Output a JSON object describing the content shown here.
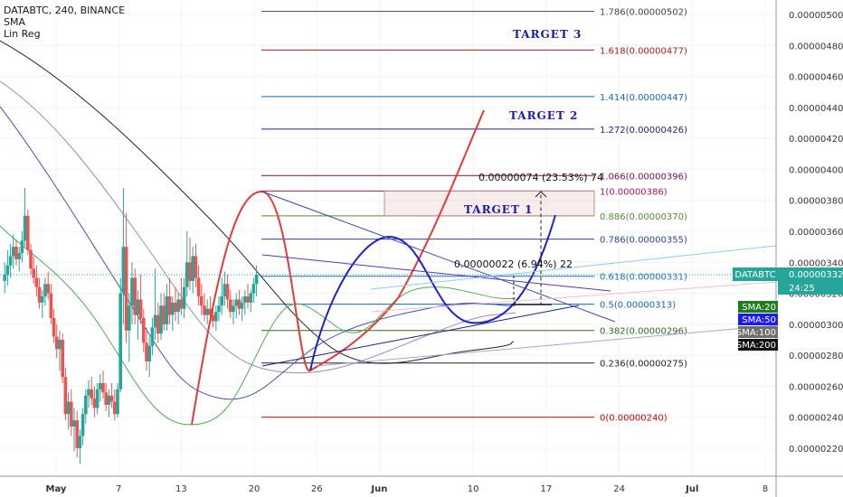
{
  "header": {
    "symbol_line": "DATABTC, 240, BINANCE",
    "indicators": [
      "SMA",
      "Lin Reg"
    ]
  },
  "chart_data": {
    "type": "candlestick",
    "ylim": [
      2.1e-06,
      5.15e-06
    ],
    "y_ticks": [
      "0.00000220",
      "0.00000240",
      "0.00000260",
      "0.00000280",
      "0.00000300",
      "0.00000320",
      "0.00000340",
      "0.00000360",
      "0.00000380",
      "0.00000400",
      "0.00000420",
      "0.00000440",
      "0.00000460",
      "0.00000480",
      "0.00000500"
    ],
    "x_ticks": [
      {
        "label": "May",
        "day": 1
      },
      {
        "label": "7",
        "day": 7
      },
      {
        "label": "13",
        "day": 13
      },
      {
        "label": "20",
        "day": 20
      },
      {
        "label": "26",
        "day": 26
      },
      {
        "label": "Jun",
        "day": 32
      },
      {
        "label": "10",
        "day": 41
      },
      {
        "label": "17",
        "day": 48
      },
      {
        "label": "24",
        "day": 55
      },
      {
        "label": "Jul",
        "day": 62
      },
      {
        "label": "8",
        "day": 69
      }
    ],
    "fib_levels": [
      {
        "label": "1.786(0.00000502)",
        "value": 5.02e-06,
        "color": "#444444"
      },
      {
        "label": "1.618(0.00000477)",
        "value": 4.77e-06,
        "color": "#b71c1c"
      },
      {
        "label": "1.414(0.00000447)",
        "value": 4.47e-06,
        "color": "#1565c0"
      },
      {
        "label": "1.272(0.00000426)",
        "value": 4.26e-06,
        "color": "#1a237e"
      },
      {
        "label": "1.066(0.00000396)",
        "value": 3.96e-06,
        "color": "#880e4f"
      },
      {
        "label": "1(0.00000386)",
        "value": 3.86e-06,
        "color": "#ad1457"
      },
      {
        "label": "0.886(0.00000370)",
        "value": 3.7e-06,
        "color": "#558b2f"
      },
      {
        "label": "0.786(0.00000355)",
        "value": 3.55e-06,
        "color": "#303f9f"
      },
      {
        "label": "0.618(0.00000331)",
        "value": 3.31e-06,
        "color": "#1976d2"
      },
      {
        "label": "0.5(0.00000313)",
        "value": 3.13e-06,
        "color": "#1565c0"
      },
      {
        "label": "0.382(0.00000296)",
        "value": 2.96e-06,
        "color": "#33691e"
      },
      {
        "label": "0.236(0.00000275)",
        "value": 2.75e-06,
        "color": "#222222"
      },
      {
        "label": "0(0.00000240)",
        "value": 2.4e-06,
        "color": "#d50000"
      }
    ],
    "annotations": {
      "target1": "TARGET  1",
      "target2": "TARGET  2",
      "target3": "TARGET  3",
      "measure_big": "0.00000074 (23.53%) 74",
      "measure_small": "0.00000022 (6.94%) 22"
    },
    "price_tags": [
      {
        "label": "DATABTC",
        "value": "0.00000332",
        "bg": "#26a69a"
      },
      {
        "label": "",
        "value": "24:25",
        "bg": "#26a69a"
      }
    ],
    "sma_tags": [
      {
        "label": "SMA:20",
        "bg": "#1b7d1b"
      },
      {
        "label": "SMA:50",
        "bg": "#1a1aff"
      },
      {
        "label": "SMA:100",
        "bg": "#6e6e6e"
      },
      {
        "label": "SMA:200",
        "bg": "#111111"
      }
    ],
    "candles": [
      [
        0.5,
        328,
        340,
        320,
        332
      ],
      [
        1.0,
        332,
        348,
        325,
        338
      ],
      [
        1.5,
        338,
        352,
        330,
        344
      ],
      [
        2.0,
        344,
        358,
        336,
        350
      ],
      [
        2.5,
        350,
        355,
        338,
        342
      ],
      [
        3.0,
        342,
        350,
        334,
        346
      ],
      [
        3.5,
        346,
        360,
        340,
        354
      ],
      [
        4.0,
        354,
        388,
        350,
        370
      ],
      [
        4.5,
        370,
        374,
        345,
        348
      ],
      [
        5.0,
        348,
        352,
        332,
        336
      ],
      [
        5.5,
        336,
        344,
        326,
        330
      ],
      [
        6.0,
        330,
        338,
        318,
        324
      ],
      [
        6.5,
        324,
        330,
        310,
        314
      ],
      [
        7.0,
        314,
        322,
        304,
        318
      ],
      [
        7.5,
        318,
        330,
        312,
        326
      ],
      [
        8.0,
        326,
        334,
        316,
        320
      ],
      [
        8.5,
        320,
        326,
        300,
        304
      ],
      [
        9.0,
        304,
        310,
        288,
        292
      ],
      [
        9.5,
        292,
        300,
        278,
        284
      ],
      [
        10.0,
        284,
        296,
        270,
        290
      ],
      [
        10.5,
        290,
        294,
        262,
        266
      ],
      [
        11.0,
        266,
        272,
        238,
        242
      ],
      [
        11.5,
        242,
        256,
        232,
        250
      ],
      [
        12.0,
        250,
        258,
        228,
        234
      ],
      [
        12.5,
        234,
        246,
        218,
        238
      ],
      [
        13.0,
        238,
        244,
        214,
        220
      ],
      [
        13.5,
        220,
        232,
        210,
        228
      ],
      [
        14.0,
        228,
        246,
        222,
        242
      ],
      [
        14.5,
        242,
        258,
        236,
        254
      ],
      [
        15.0,
        254,
        264,
        246,
        258
      ],
      [
        15.5,
        258,
        266,
        248,
        252
      ],
      [
        16.0,
        252,
        260,
        240,
        246
      ],
      [
        16.5,
        246,
        262,
        242,
        258
      ],
      [
        17.0,
        258,
        268,
        250,
        262
      ],
      [
        17.5,
        262,
        270,
        252,
        256
      ],
      [
        18.0,
        256,
        262,
        244,
        248
      ],
      [
        18.5,
        248,
        258,
        240,
        254
      ],
      [
        19.0,
        254,
        262,
        246,
        250
      ],
      [
        19.5,
        250,
        258,
        238,
        242
      ],
      [
        20.0,
        242,
        262,
        240,
        258
      ],
      [
        20.5,
        258,
        330,
        256,
        320
      ],
      [
        21.0,
        320,
        388,
        300,
        350
      ],
      [
        21.5,
        350,
        372,
        288,
        296
      ],
      [
        22.0,
        296,
        320,
        276,
        312
      ],
      [
        22.5,
        312,
        340,
        300,
        330
      ],
      [
        23.0,
        330,
        336,
        300,
        306
      ],
      [
        23.5,
        306,
        322,
        290,
        316
      ],
      [
        24.0,
        316,
        332,
        300,
        304
      ],
      [
        24.5,
        304,
        310,
        282,
        288
      ],
      [
        25.0,
        288,
        298,
        270,
        276
      ],
      [
        25.5,
        276,
        292,
        266,
        286
      ],
      [
        26.0,
        286,
        304,
        280,
        298
      ],
      [
        26.5,
        298,
        336,
        290,
        306
      ],
      [
        27.0,
        306,
        314,
        288,
        294
      ],
      [
        27.5,
        294,
        320,
        290,
        312
      ],
      [
        28.0,
        312,
        320,
        296,
        300
      ],
      [
        28.5,
        300,
        326,
        296,
        318
      ],
      [
        29.0,
        318,
        330,
        300,
        306
      ],
      [
        29.5,
        306,
        318,
        296,
        314
      ],
      [
        30.0,
        314,
        324,
        302,
        308
      ],
      [
        30.5,
        308,
        320,
        300,
        316
      ],
      [
        31.0,
        316,
        330,
        306,
        310
      ],
      [
        31.5,
        310,
        330,
        304,
        324
      ],
      [
        32.0,
        324,
        360,
        318,
        340
      ],
      [
        32.5,
        340,
        356,
        322,
        328
      ],
      [
        33.0,
        328,
        350,
        320,
        344
      ],
      [
        33.5,
        344,
        352,
        324,
        330
      ],
      [
        34.0,
        330,
        338,
        312,
        318
      ],
      [
        34.5,
        318,
        326,
        306,
        312
      ],
      [
        35.0,
        312,
        320,
        302,
        306
      ],
      [
        35.5,
        306,
        316,
        300,
        310
      ],
      [
        36.0,
        310,
        318,
        302,
        306
      ],
      [
        36.5,
        306,
        314,
        298,
        302
      ],
      [
        37.0,
        302,
        312,
        296,
        308
      ],
      [
        37.5,
        308,
        318,
        302,
        312
      ],
      [
        38.0,
        312,
        330,
        306,
        318
      ],
      [
        38.5,
        318,
        334,
        312,
        326
      ],
      [
        39.0,
        326,
        332,
        310,
        316
      ],
      [
        39.5,
        316,
        322,
        304,
        308
      ],
      [
        40.0,
        308,
        316,
        300,
        312
      ],
      [
        40.5,
        312,
        320,
        304,
        316
      ],
      [
        41.0,
        316,
        322,
        306,
        310
      ],
      [
        41.5,
        310,
        318,
        302,
        314
      ],
      [
        42.0,
        314,
        322,
        306,
        318
      ],
      [
        42.5,
        318,
        326,
        310,
        314
      ],
      [
        43.0,
        314,
        322,
        308,
        320
      ],
      [
        43.5,
        320,
        330,
        314,
        326
      ],
      [
        44.0,
        326,
        338,
        318,
        332
      ]
    ]
  }
}
